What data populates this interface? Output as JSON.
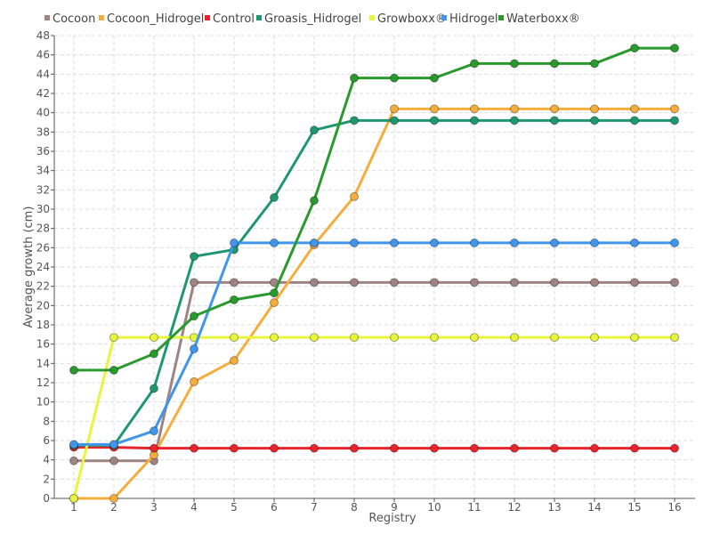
{
  "chart_data": {
    "type": "line",
    "title": "",
    "xlabel": "Registry",
    "ylabel": "Average growth (cm)",
    "categories": [
      "1",
      "2",
      "3",
      "4",
      "5",
      "6",
      "7",
      "8",
      "9",
      "10",
      "11",
      "12",
      "13",
      "14",
      "15",
      "16"
    ],
    "ylim": [
      0,
      48
    ],
    "ytick_step": 2,
    "grid": true,
    "legend_position": "top-left",
    "series": [
      {
        "name": "Cocoon",
        "color": "#a08383",
        "values": [
          3.9,
          3.9,
          3.9,
          22.4,
          22.4,
          22.4,
          22.4,
          22.4,
          22.4,
          22.4,
          22.4,
          22.4,
          22.4,
          22.4,
          22.4,
          22.4
        ]
      },
      {
        "name": "Cocoon_Hidrogel",
        "color": "#f5ad3c",
        "values": [
          0,
          0,
          4.5,
          12.1,
          14.3,
          20.3,
          26.3,
          31.3,
          40.4,
          40.4,
          40.4,
          40.4,
          40.4,
          40.4,
          40.4,
          40.4
        ]
      },
      {
        "name": "Control",
        "color": "#e8242c",
        "values": [
          5.3,
          5.3,
          5.2,
          5.2,
          5.2,
          5.2,
          5.2,
          5.2,
          5.2,
          5.2,
          5.2,
          5.2,
          5.2,
          5.2,
          5.2,
          5.2
        ]
      },
      {
        "name": "Groasis_Hidrogel",
        "color": "#1f9870",
        "values": [
          5.5,
          5.5,
          11.4,
          25.1,
          25.8,
          31.2,
          38.2,
          39.2,
          39.2,
          39.2,
          39.2,
          39.2,
          39.2,
          39.2,
          39.2,
          39.2
        ]
      },
      {
        "name": "Growboxx®",
        "color": "#e8f53c",
        "values": [
          0,
          16.7,
          16.7,
          16.7,
          16.7,
          16.7,
          16.7,
          16.7,
          16.7,
          16.7,
          16.7,
          16.7,
          16.7,
          16.7,
          16.7,
          16.7
        ]
      },
      {
        "name": "Hidrogel",
        "color": "#4196ec",
        "values": [
          5.6,
          5.6,
          7.0,
          15.5,
          26.5,
          26.5,
          26.5,
          26.5,
          26.5,
          26.5,
          26.5,
          26.5,
          26.5,
          26.5,
          26.5,
          26.5
        ]
      },
      {
        "name": "Waterboxx®",
        "color": "#2a9a2e",
        "values": [
          13.3,
          13.3,
          15.0,
          18.9,
          20.6,
          21.3,
          30.9,
          43.6,
          43.6,
          43.6,
          45.1,
          45.1,
          45.1,
          45.1,
          46.7,
          46.7
        ]
      }
    ]
  }
}
